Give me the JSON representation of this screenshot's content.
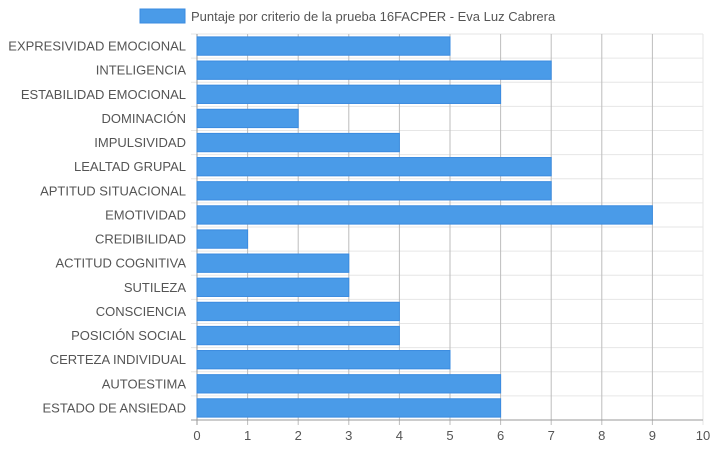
{
  "chart_data": {
    "type": "bar",
    "orientation": "horizontal",
    "legend_position": "top",
    "grid": true,
    "xlim": [
      0,
      10
    ],
    "x_ticks": [
      "0",
      "1",
      "2",
      "3",
      "4",
      "5",
      "6",
      "7",
      "8",
      "9",
      "10"
    ],
    "colors": {
      "bar_fill": "#4a9be8",
      "bar_stroke": "#3a8be0",
      "grid": "#e6e6e6",
      "axis": "#999999",
      "text": "#555555"
    },
    "series": [
      {
        "name": "Puntaje por criterio de la prueba 16FACPER - Eva Luz Cabrera",
        "values": [
          5,
          7,
          6,
          2,
          4,
          7,
          7,
          9,
          1,
          3,
          3,
          4,
          4,
          5,
          6,
          6
        ]
      }
    ],
    "categories": [
      "EXPRESIVIDAD EMOCIONAL",
      "INTELIGENCIA",
      "ESTABILIDAD EMOCIONAL",
      "DOMINACIÓN",
      "IMPULSIVIDAD",
      "LEALTAD GRUPAL",
      "APTITUD SITUACIONAL",
      "EMOTIVIDAD",
      "CREDIBILIDAD",
      "ACTITUD COGNITIVA",
      "SUTILEZA",
      "CONSCIENCIA",
      "POSICIÓN SOCIAL",
      "CERTEZA INDIVIDUAL",
      "AUTOESTIMA",
      "ESTADO DE ANSIEDAD"
    ]
  }
}
